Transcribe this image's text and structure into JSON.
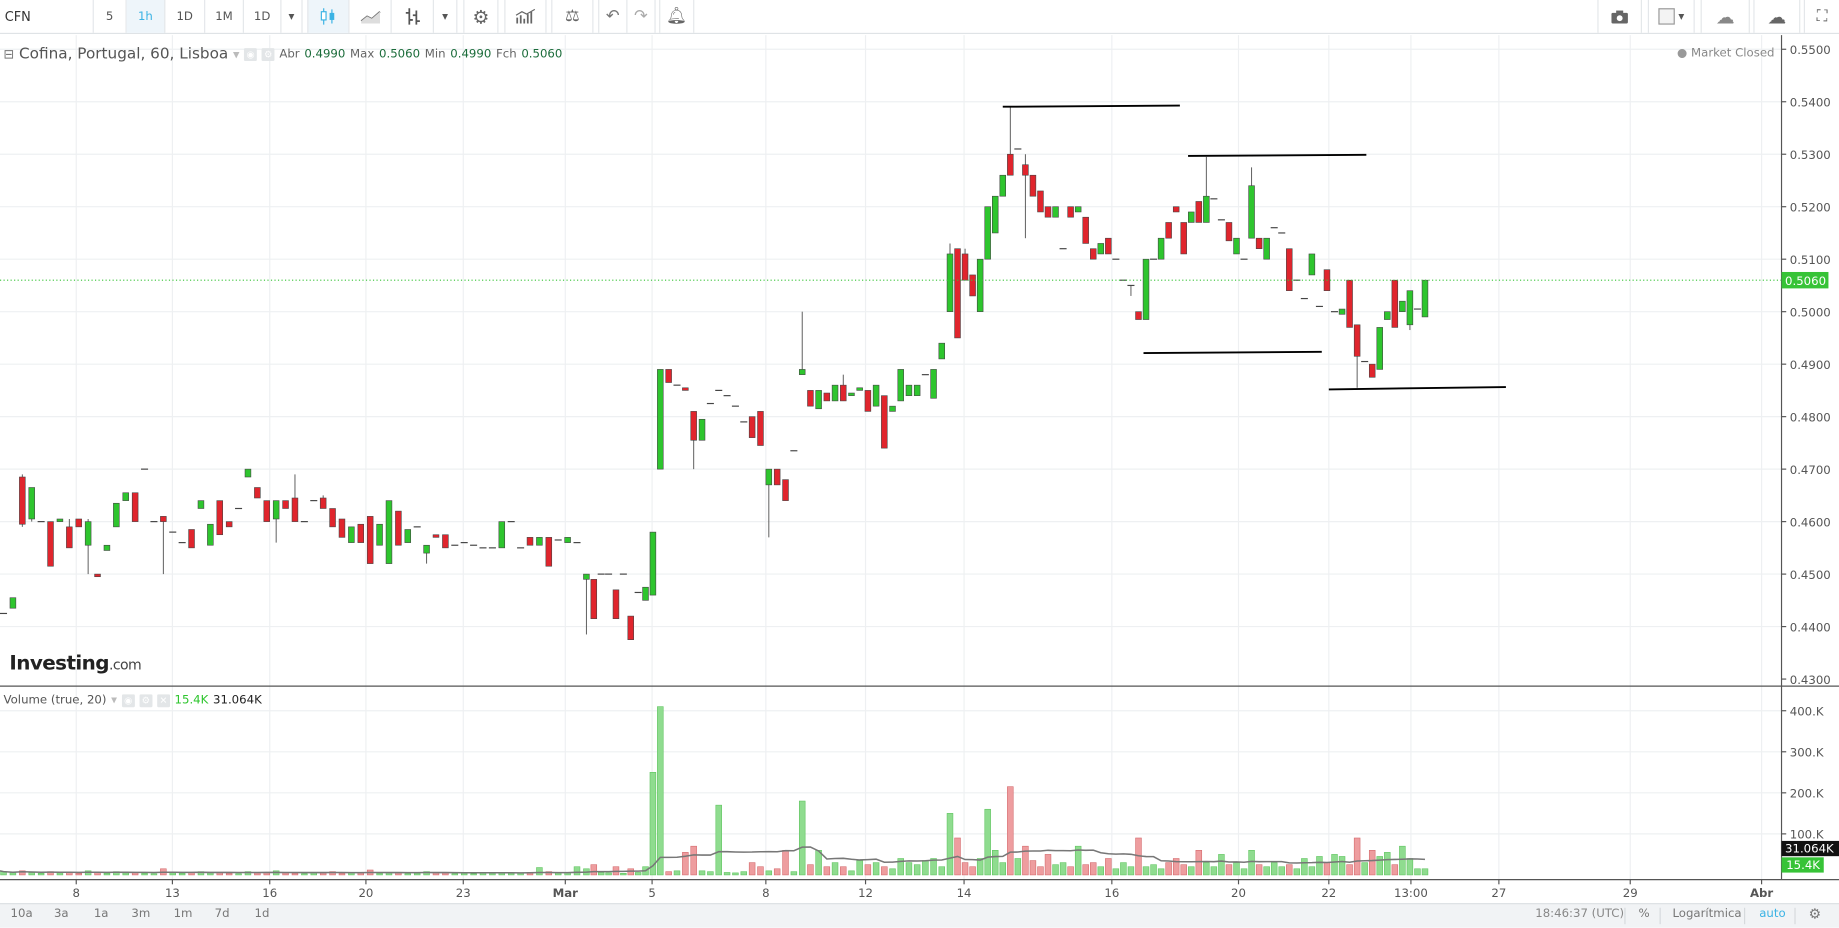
{
  "toolbar": {
    "symbol": "CFN",
    "intervals": [
      "5",
      "1h",
      "1D",
      "1M",
      "1D"
    ],
    "active_interval": "1h",
    "icons": [
      "candles-icon",
      "line-chart-icon",
      "bars-icon",
      "gear-icon",
      "indicators-icon",
      "compare-scale-icon",
      "undo-icon",
      "redo-icon",
      "alert-add-icon",
      "camera-icon",
      "color-box-icon",
      "cloud-download-icon",
      "cloud-upload-icon",
      "fullscreen-icon"
    ]
  },
  "legend": {
    "title": "Cofina, Portugal, 60, Lisboa",
    "open_label": "Abr",
    "open": "0.4990",
    "high_label": "Max",
    "high": "0.5060",
    "low_label": "Min",
    "low": "0.4990",
    "close_label": "Fch",
    "close": "0.5060",
    "market_status": "Market Closed"
  },
  "volume_legend": {
    "title": "Volume (true, 20)",
    "value": "15.4K",
    "ma_value": "31.064K"
  },
  "logo": {
    "brand": "Investing",
    "suffix": ".com"
  },
  "colors": {
    "up": "#2ec52e",
    "down": "#e0252d",
    "current_price": "#37c337",
    "accent": "#3bb3e4",
    "vol_up": "#8fdc8f",
    "vol_down": "#ee9d9f"
  },
  "price_axis": {
    "ticks": [
      "0.5500",
      "0.5400",
      "0.5300",
      "0.5200",
      "0.5100",
      "0.5000",
      "0.4900",
      "0.4800",
      "0.4700",
      "0.4600",
      "0.4500",
      "0.4400",
      "0.4300"
    ],
    "current_price": "0.5060"
  },
  "volume_axis": {
    "ticks": [
      "400.K",
      "300.K",
      "200.K",
      "100.K"
    ],
    "ma_label": "31.064K",
    "last_label": "15.4K"
  },
  "time_axis": {
    "labels": [
      "8",
      "13",
      "16",
      "20",
      "23",
      "Mar",
      "5",
      "8",
      "12",
      "14",
      "16",
      "20",
      "22",
      "13:00",
      "27",
      "29",
      "Abr"
    ]
  },
  "bottom_bar": {
    "ranges": [
      "10a",
      "3a",
      "1a",
      "3m",
      "1m",
      "7d",
      "1d"
    ],
    "clock": "18:46:37 (UTC)",
    "percent": "%",
    "log": "Logarítmica",
    "auto": "auto"
  },
  "chart_data": {
    "type": "candlestick",
    "ylim": [
      0.43,
      0.55
    ],
    "volume_ylim": [
      0,
      400
    ],
    "volume_unit": "K",
    "candles_ohlc": [
      [
        0.4425,
        0.4425,
        0.4425,
        0.4425
      ],
      [
        0.4435,
        0.4455,
        0.4435,
        0.4455
      ],
      [
        0.4685,
        0.469,
        0.459,
        0.4595
      ],
      [
        0.4605,
        0.4665,
        0.46,
        0.4665
      ],
      [
        0.46,
        0.46,
        0.46,
        0.46
      ],
      [
        0.46,
        0.46,
        0.4515,
        0.4515
      ],
      [
        0.46,
        0.4605,
        0.46,
        0.4605
      ],
      [
        0.459,
        0.4605,
        0.455,
        0.455
      ],
      [
        0.4605,
        0.4605,
        0.459,
        0.459
      ],
      [
        0.4555,
        0.4605,
        0.45,
        0.46
      ],
      [
        0.45,
        0.45,
        0.4495,
        0.4495
      ],
      [
        0.4545,
        0.4555,
        0.4545,
        0.4555
      ],
      [
        0.459,
        0.4635,
        0.459,
        0.4635
      ],
      [
        0.464,
        0.4655,
        0.464,
        0.4655
      ],
      [
        0.4655,
        0.4655,
        0.46,
        0.46
      ],
      [
        0.47,
        0.47,
        0.47,
        0.47
      ],
      [
        0.46,
        0.46,
        0.46,
        0.46
      ],
      [
        0.461,
        0.461,
        0.45,
        0.46
      ],
      [
        0.458,
        0.458,
        0.458,
        0.458
      ],
      [
        0.456,
        0.456,
        0.456,
        0.456
      ],
      [
        0.4585,
        0.4585,
        0.455,
        0.455
      ],
      [
        0.4625,
        0.464,
        0.4625,
        0.464
      ],
      [
        0.4555,
        0.4595,
        0.4555,
        0.4595
      ],
      [
        0.464,
        0.464,
        0.4575,
        0.4575
      ],
      [
        0.46,
        0.46,
        0.459,
        0.459
      ],
      [
        0.4625,
        0.4625,
        0.4625,
        0.4625
      ],
      [
        0.4685,
        0.47,
        0.4685,
        0.47
      ],
      [
        0.4665,
        0.4665,
        0.4645,
        0.4645
      ],
      [
        0.464,
        0.464,
        0.46,
        0.46
      ],
      [
        0.4605,
        0.464,
        0.456,
        0.464
      ],
      [
        0.464,
        0.464,
        0.4625,
        0.4625
      ],
      [
        0.4645,
        0.469,
        0.46,
        0.46
      ],
      [
        0.46,
        0.46,
        0.46,
        0.46
      ],
      [
        0.464,
        0.464,
        0.464,
        0.464
      ],
      [
        0.4645,
        0.465,
        0.4625,
        0.4625
      ],
      [
        0.4625,
        0.4625,
        0.459,
        0.459
      ],
      [
        0.4605,
        0.4605,
        0.457,
        0.457
      ],
      [
        0.456,
        0.459,
        0.456,
        0.459
      ],
      [
        0.4595,
        0.4595,
        0.456,
        0.456
      ],
      [
        0.461,
        0.461,
        0.452,
        0.452
      ],
      [
        0.4555,
        0.4595,
        0.4555,
        0.4595
      ],
      [
        0.452,
        0.464,
        0.452,
        0.464
      ],
      [
        0.462,
        0.462,
        0.4555,
        0.4555
      ],
      [
        0.456,
        0.4585,
        0.456,
        0.4585
      ],
      [
        0.459,
        0.459,
        0.459,
        0.459
      ],
      [
        0.454,
        0.4555,
        0.452,
        0.4555
      ],
      [
        0.4575,
        0.4575,
        0.457,
        0.457
      ],
      [
        0.4575,
        0.4575,
        0.455,
        0.455
      ],
      [
        0.4555,
        0.4555,
        0.4555,
        0.4555
      ],
      [
        0.456,
        0.456,
        0.456,
        0.456
      ],
      [
        0.4555,
        0.4555,
        0.4555,
        0.4555
      ],
      [
        0.455,
        0.455,
        0.455,
        0.455
      ],
      [
        0.455,
        0.455,
        0.455,
        0.455
      ],
      [
        0.455,
        0.46,
        0.455,
        0.46
      ],
      [
        0.46,
        0.46,
        0.46,
        0.46
      ],
      [
        0.455,
        0.455,
        0.455,
        0.455
      ],
      [
        0.457,
        0.457,
        0.4555,
        0.4555
      ],
      [
        0.4555,
        0.457,
        0.4555,
        0.457
      ],
      [
        0.457,
        0.457,
        0.4515,
        0.4515
      ],
      [
        0.4565,
        0.4565,
        0.4565,
        0.4565
      ],
      [
        0.456,
        0.457,
        0.456,
        0.457
      ],
      [
        0.456,
        0.456,
        0.456,
        0.456
      ],
      [
        0.449,
        0.45,
        0.4385,
        0.45
      ],
      [
        0.449,
        0.449,
        0.4415,
        0.4415
      ],
      [
        0.45,
        0.45,
        0.45,
        0.45
      ],
      [
        0.45,
        0.45,
        0.45,
        0.45
      ],
      [
        0.447,
        0.447,
        0.4415,
        0.4415
      ],
      [
        0.45,
        0.45,
        0.45,
        0.45
      ],
      [
        0.442,
        0.442,
        0.4375,
        0.4375
      ],
      [
        0.4465,
        0.4465,
        0.4465,
        0.4465
      ],
      [
        0.445,
        0.4475,
        0.445,
        0.4475
      ],
      [
        0.446,
        0.458,
        0.446,
        0.458
      ],
      [
        0.47,
        0.489,
        0.47,
        0.489
      ],
      [
        0.489,
        0.489,
        0.4865,
        0.4865
      ],
      [
        0.486,
        0.486,
        0.486,
        0.486
      ],
      [
        0.4855,
        0.4855,
        0.485,
        0.485
      ],
      [
        0.481,
        0.481,
        0.47,
        0.4755
      ],
      [
        0.4755,
        0.4795,
        0.4755,
        0.4795
      ],
      [
        0.4825,
        0.4825,
        0.4825,
        0.4825
      ],
      [
        0.485,
        0.485,
        0.485,
        0.485
      ],
      [
        0.484,
        0.484,
        0.484,
        0.484
      ],
      [
        0.482,
        0.482,
        0.482,
        0.482
      ],
      [
        0.479,
        0.479,
        0.479,
        0.479
      ],
      [
        0.48,
        0.48,
        0.476,
        0.476
      ],
      [
        0.481,
        0.481,
        0.4745,
        0.4745
      ],
      [
        0.467,
        0.47,
        0.457,
        0.47
      ],
      [
        0.47,
        0.47,
        0.467,
        0.467
      ],
      [
        0.468,
        0.468,
        0.464,
        0.464
      ],
      [
        0.4735,
        0.4735,
        0.4735,
        0.4735
      ],
      [
        0.488,
        0.5,
        0.488,
        0.489
      ],
      [
        0.485,
        0.485,
        0.482,
        0.482
      ],
      [
        0.4815,
        0.485,
        0.4815,
        0.485
      ],
      [
        0.4845,
        0.4845,
        0.483,
        0.483
      ],
      [
        0.483,
        0.486,
        0.483,
        0.486
      ],
      [
        0.486,
        0.488,
        0.483,
        0.483
      ],
      [
        0.484,
        0.4845,
        0.484,
        0.4845
      ],
      [
        0.485,
        0.4855,
        0.485,
        0.4855
      ],
      [
        0.485,
        0.485,
        0.481,
        0.481
      ],
      [
        0.482,
        0.486,
        0.482,
        0.486
      ],
      [
        0.484,
        0.484,
        0.474,
        0.474
      ],
      [
        0.481,
        0.482,
        0.481,
        0.482
      ],
      [
        0.483,
        0.489,
        0.483,
        0.489
      ],
      [
        0.484,
        0.486,
        0.484,
        0.486
      ],
      [
        0.484,
        0.486,
        0.484,
        0.486
      ],
      [
        0.488,
        0.488,
        0.488,
        0.488
      ],
      [
        0.4835,
        0.489,
        0.4835,
        0.489
      ],
      [
        0.491,
        0.494,
        0.491,
        0.494
      ],
      [
        0.5,
        0.513,
        0.5,
        0.511
      ],
      [
        0.512,
        0.512,
        0.495,
        0.495
      ],
      [
        0.511,
        0.512,
        0.506,
        0.506
      ],
      [
        0.507,
        0.507,
        0.503,
        0.503
      ],
      [
        0.5,
        0.51,
        0.5,
        0.51
      ],
      [
        0.51,
        0.52,
        0.51,
        0.52
      ],
      [
        0.515,
        0.522,
        0.515,
        0.522
      ],
      [
        0.522,
        0.526,
        0.522,
        0.526
      ],
      [
        0.53,
        0.539,
        0.526,
        0.526
      ],
      [
        0.531,
        0.531,
        0.531,
        0.531
      ],
      [
        0.528,
        0.53,
        0.514,
        0.526
      ],
      [
        0.526,
        0.526,
        0.522,
        0.522
      ],
      [
        0.523,
        0.523,
        0.519,
        0.519
      ],
      [
        0.52,
        0.52,
        0.518,
        0.518
      ],
      [
        0.518,
        0.52,
        0.518,
        0.52
      ],
      [
        0.512,
        0.512,
        0.512,
        0.512
      ],
      [
        0.52,
        0.52,
        0.518,
        0.518
      ],
      [
        0.519,
        0.52,
        0.519,
        0.52
      ],
      [
        0.518,
        0.518,
        0.513,
        0.513
      ],
      [
        0.512,
        0.512,
        0.51,
        0.51
      ],
      [
        0.511,
        0.513,
        0.511,
        0.513
      ],
      [
        0.514,
        0.514,
        0.511,
        0.511
      ],
      [
        0.51,
        0.51,
        0.51,
        0.51
      ],
      [
        0.506,
        0.506,
        0.506,
        0.506
      ],
      [
        0.505,
        0.505,
        0.503,
        0.505
      ],
      [
        0.5,
        0.5,
        0.4985,
        0.4985
      ],
      [
        0.4985,
        0.51,
        0.4985,
        0.51
      ],
      [
        0.51,
        0.51,
        0.51,
        0.51
      ],
      [
        0.51,
        0.514,
        0.51,
        0.514
      ],
      [
        0.517,
        0.517,
        0.514,
        0.514
      ],
      [
        0.52,
        0.52,
        0.519,
        0.519
      ],
      [
        0.517,
        0.517,
        0.511,
        0.511
      ],
      [
        0.517,
        0.519,
        0.517,
        0.519
      ],
      [
        0.521,
        0.521,
        0.517,
        0.517
      ],
      [
        0.517,
        0.5295,
        0.517,
        0.522
      ],
      [
        0.5215,
        0.5215,
        0.5215,
        0.5215
      ],
      [
        0.5175,
        0.5175,
        0.5175,
        0.5175
      ],
      [
        0.517,
        0.517,
        0.5135,
        0.5135
      ],
      [
        0.511,
        0.514,
        0.511,
        0.514
      ],
      [
        0.51,
        0.51,
        0.51,
        0.51
      ],
      [
        0.514,
        0.5275,
        0.514,
        0.524
      ],
      [
        0.514,
        0.514,
        0.512,
        0.512
      ],
      [
        0.51,
        0.514,
        0.51,
        0.514
      ],
      [
        0.516,
        0.516,
        0.516,
        0.516
      ],
      [
        0.515,
        0.515,
        0.515,
        0.515
      ],
      [
        0.512,
        0.512,
        0.504,
        0.504
      ],
      [
        0.506,
        0.506,
        0.506,
        0.506
      ],
      [
        0.5025,
        0.5025,
        0.5025,
        0.5025
      ],
      [
        0.507,
        0.511,
        0.507,
        0.511
      ],
      [
        0.501,
        0.501,
        0.501,
        0.501
      ],
      [
        0.508,
        0.508,
        0.504,
        0.504
      ],
      [
        0.5,
        0.5,
        0.5,
        0.5
      ],
      [
        0.4995,
        0.5005,
        0.4995,
        0.5005
      ],
      [
        0.506,
        0.506,
        0.497,
        0.497
      ],
      [
        0.4975,
        0.4975,
        0.4855,
        0.4915
      ],
      [
        0.4905,
        0.4905,
        0.4905,
        0.4905
      ],
      [
        0.49,
        0.49,
        0.4875,
        0.4875
      ],
      [
        0.489,
        0.497,
        0.489,
        0.497
      ],
      [
        0.4985,
        0.5,
        0.4985,
        0.5
      ],
      [
        0.506,
        0.506,
        0.497,
        0.497
      ],
      [
        0.5,
        0.502,
        0.5,
        0.502
      ],
      [
        0.4975,
        0.504,
        0.4965,
        0.504
      ],
      [
        0.5005,
        0.5005,
        0.5005,
        0.5005
      ],
      [
        0.499,
        0.506,
        0.499,
        0.506
      ]
    ],
    "volumes_k": [
      8,
      5,
      10,
      6,
      4,
      8,
      5,
      6,
      4,
      10,
      6,
      4,
      8,
      5,
      6,
      4,
      3,
      15,
      5,
      4,
      6,
      8,
      5,
      6,
      4,
      3,
      8,
      5,
      6,
      10,
      5,
      4,
      3,
      6,
      5,
      8,
      4,
      6,
      5,
      12,
      4,
      6,
      5,
      3,
      4,
      8,
      6,
      5,
      3,
      4,
      3,
      5,
      4,
      6,
      4,
      5,
      6,
      18,
      8,
      5,
      6,
      20,
      15,
      25,
      6,
      5,
      20,
      4,
      15,
      6,
      20,
      250,
      410,
      8,
      10,
      55,
      70,
      10,
      8,
      170,
      6,
      5,
      8,
      30,
      20,
      10,
      15,
      60,
      8,
      180,
      25,
      60,
      20,
      30,
      20,
      10,
      35,
      25,
      30,
      20,
      15,
      40,
      30,
      25,
      35,
      40,
      20,
      150,
      90,
      30,
      20,
      40,
      160,
      60,
      30,
      215,
      40,
      70,
      35,
      20,
      50,
      25,
      30,
      20,
      70,
      25,
      30,
      20,
      40,
      15,
      30,
      20,
      90,
      20,
      25,
      15,
      30,
      40,
      25,
      20,
      60,
      30,
      20,
      50,
      25,
      30,
      15,
      60,
      25,
      20,
      30,
      20,
      25,
      15,
      40,
      20,
      45,
      30,
      50,
      45,
      25,
      90,
      30,
      60,
      45,
      55,
      25,
      70,
      40,
      15,
      15
    ],
    "volume_ma_period": 20
  }
}
